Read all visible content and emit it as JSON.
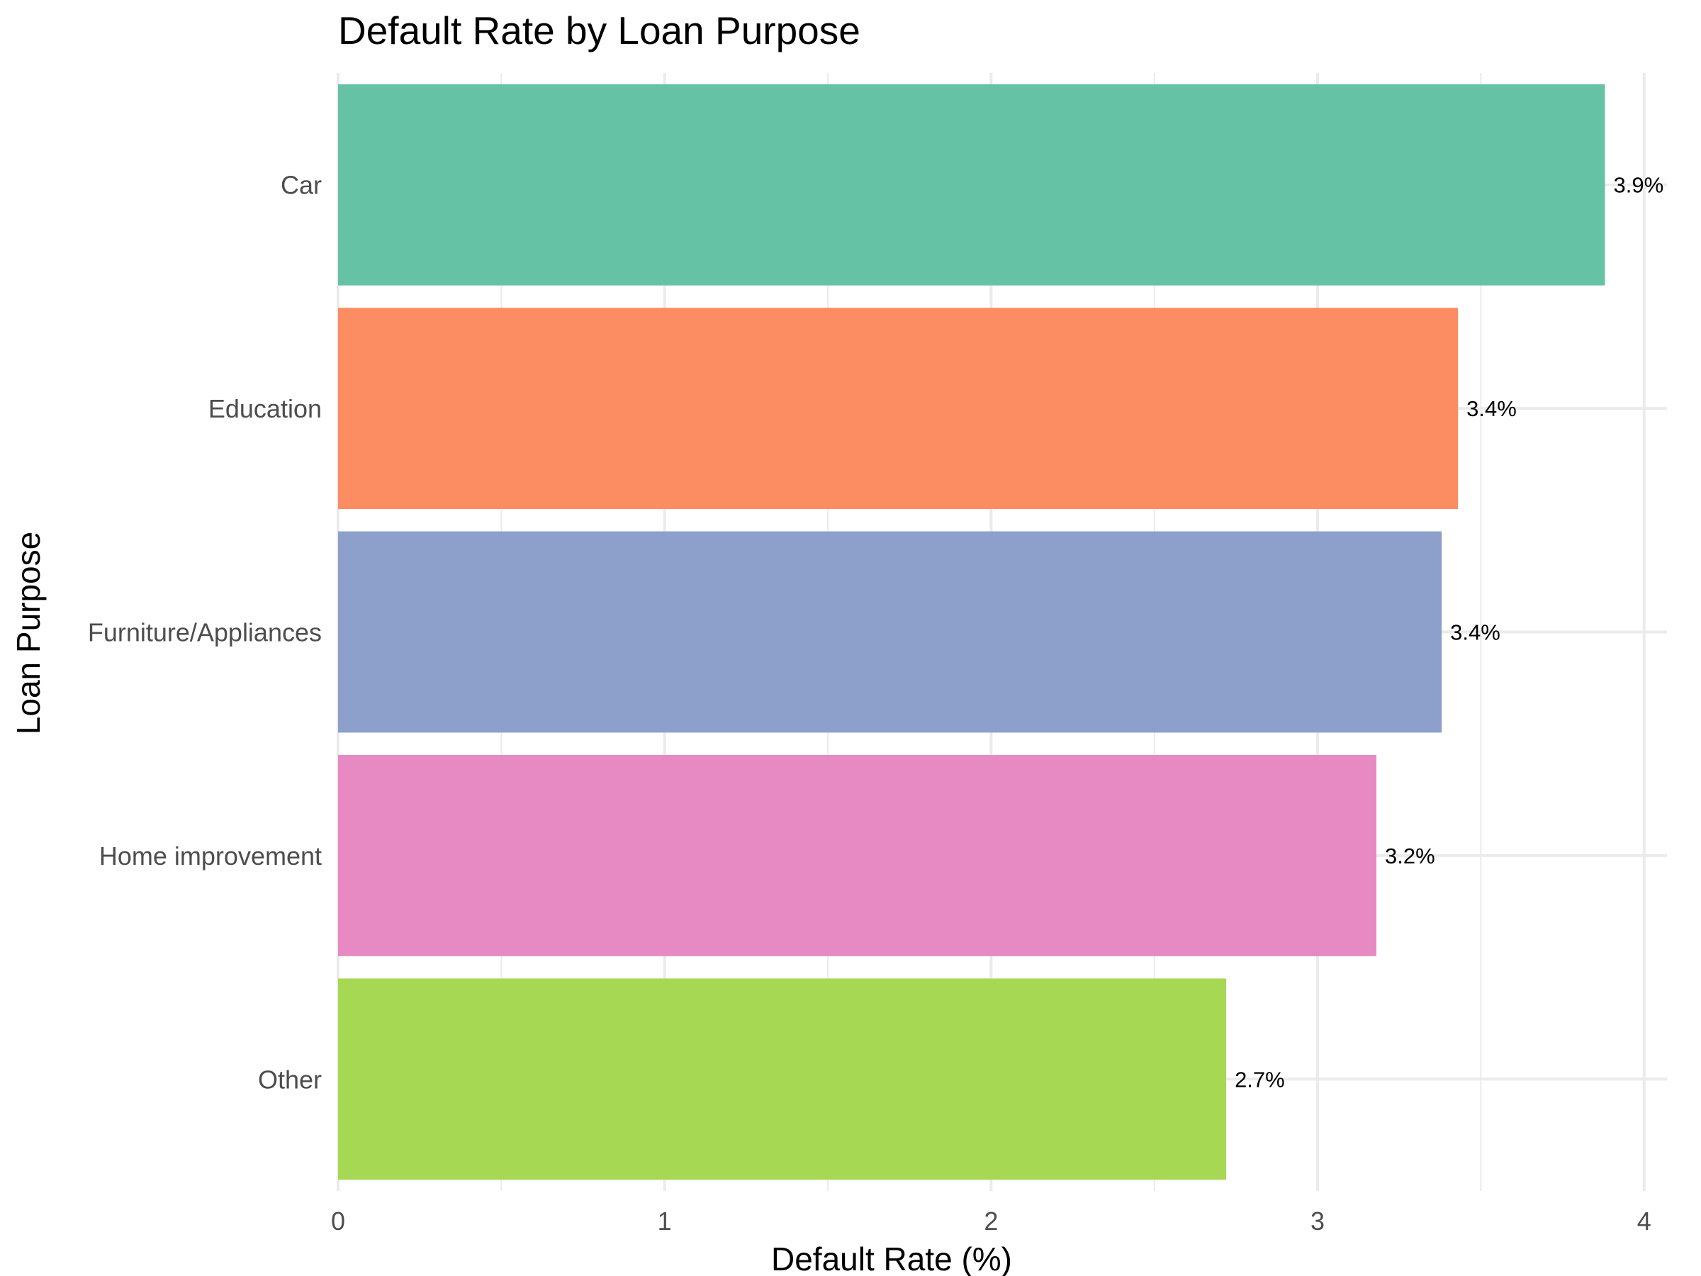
{
  "chart_data": {
    "type": "bar",
    "orientation": "horizontal",
    "title": "Default Rate by Loan Purpose",
    "xlabel": "Default Rate (%)",
    "ylabel": "Loan Purpose",
    "categories": [
      "Car",
      "Education",
      "Furniture/Appliances",
      "Home improvement",
      "Other"
    ],
    "values": [
      3.88,
      3.43,
      3.38,
      3.18,
      2.72
    ],
    "data_labels": [
      "3.9%",
      "3.4%",
      "3.4%",
      "3.2%",
      "2.7%"
    ],
    "colors": [
      "#66c2a5",
      "#fc8d62",
      "#8da0cb",
      "#e78ac3",
      "#a6d854"
    ],
    "xlim": [
      0,
      4.07
    ],
    "x_ticks": [
      0,
      1,
      2,
      3,
      4
    ],
    "x_tick_labels": [
      "0",
      "1",
      "2",
      "3",
      "4"
    ],
    "x_minor_ticks": [
      0.5,
      1.5,
      2.5,
      3.5
    ],
    "grid": true,
    "legend": "none"
  }
}
